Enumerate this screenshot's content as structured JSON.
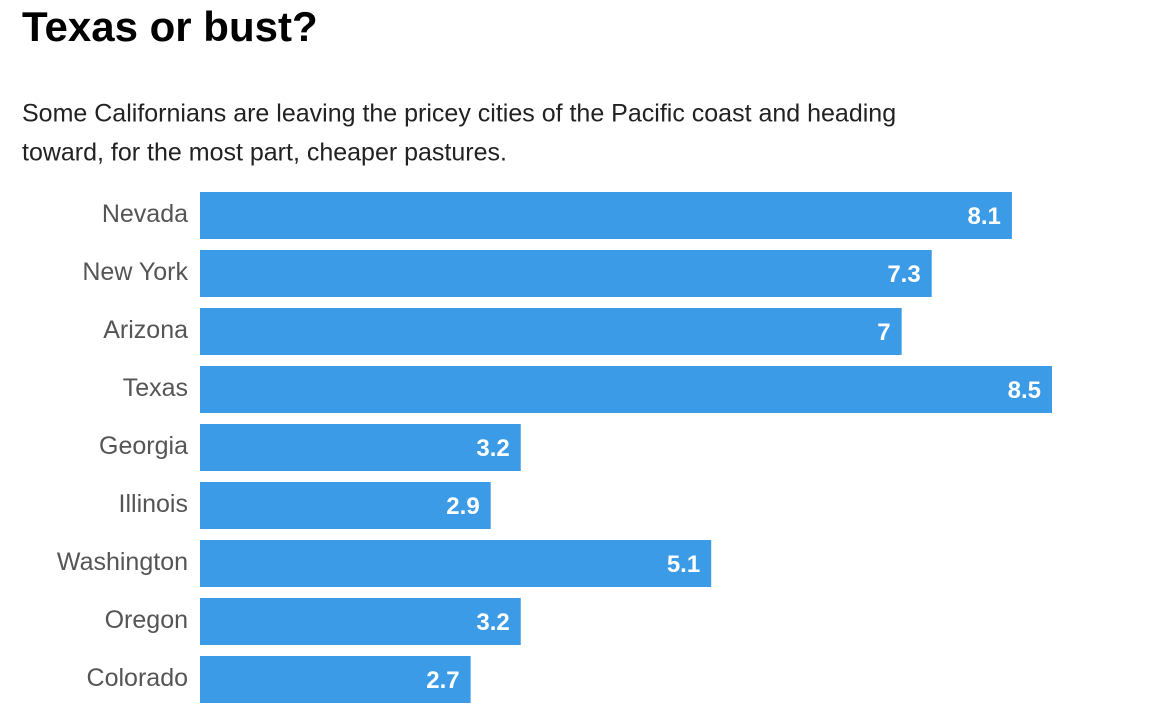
{
  "chart_data": {
    "type": "bar",
    "orientation": "horizontal",
    "title": "Texas or bust?",
    "subtitle": [
      "Some Californians are leaving the pricey cities of the Pacific coast and heading",
      "toward, for the most part, cheaper pastures."
    ],
    "categories": [
      "Nevada",
      "New York",
      "Arizona",
      "Texas",
      "Georgia",
      "Illinois",
      "Washington",
      "Oregon",
      "Colorado"
    ],
    "values": [
      8.1,
      7.3,
      7,
      8.5,
      3.2,
      2.9,
      5.1,
      3.2,
      2.7
    ],
    "color": "#3b9be6"
  }
}
